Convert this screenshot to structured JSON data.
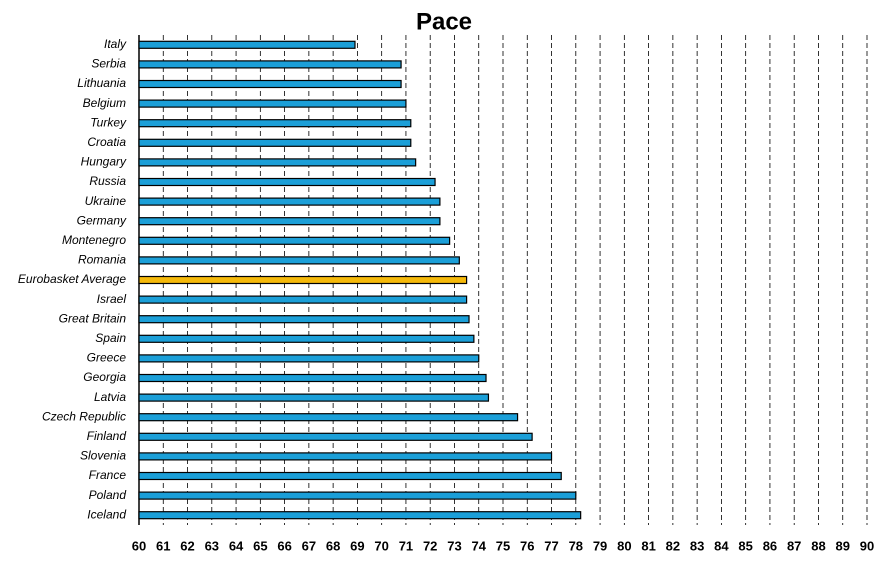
{
  "chart_data": {
    "type": "hbar",
    "title": "Pace",
    "categories": [
      "Italy",
      "Serbia",
      "Lithuania",
      "Belgium",
      "Turkey",
      "Croatia",
      "Hungary",
      "Russia",
      "Ukraine",
      "Germany",
      "Montenegro",
      "Romania",
      "Eurobasket Average",
      "Israel",
      "Great Britain",
      "Spain",
      "Greece",
      "Georgia",
      "Latvia",
      "Czech Republic",
      "Finland",
      "Slovenia",
      "France",
      "Poland",
      "Iceland"
    ],
    "values": [
      68.9,
      70.8,
      70.8,
      71.0,
      71.2,
      71.2,
      71.4,
      72.2,
      72.4,
      72.4,
      72.8,
      73.2,
      73.5,
      73.5,
      73.6,
      73.8,
      74.0,
      74.3,
      74.4,
      75.6,
      76.2,
      77.0,
      77.4,
      78.0,
      78.2
    ],
    "colors": [
      "#1b9fd8",
      "#1b9fd8",
      "#1b9fd8",
      "#1b9fd8",
      "#1b9fd8",
      "#1b9fd8",
      "#1b9fd8",
      "#1b9fd8",
      "#1b9fd8",
      "#1b9fd8",
      "#1b9fd8",
      "#1b9fd8",
      "#f5b90a",
      "#1b9fd8",
      "#1b9fd8",
      "#1b9fd8",
      "#1b9fd8",
      "#1b9fd8",
      "#1b9fd8",
      "#1b9fd8",
      "#1b9fd8",
      "#1b9fd8",
      "#1b9fd8",
      "#1b9fd8",
      "#1b9fd8"
    ],
    "xlim": [
      60,
      90
    ],
    "xticks": [
      60,
      61,
      62,
      63,
      64,
      65,
      66,
      67,
      68,
      69,
      70,
      71,
      72,
      73,
      74,
      75,
      76,
      77,
      78,
      79,
      80,
      81,
      82,
      83,
      84,
      85,
      86,
      87,
      88,
      89,
      90
    ],
    "grid": true
  }
}
